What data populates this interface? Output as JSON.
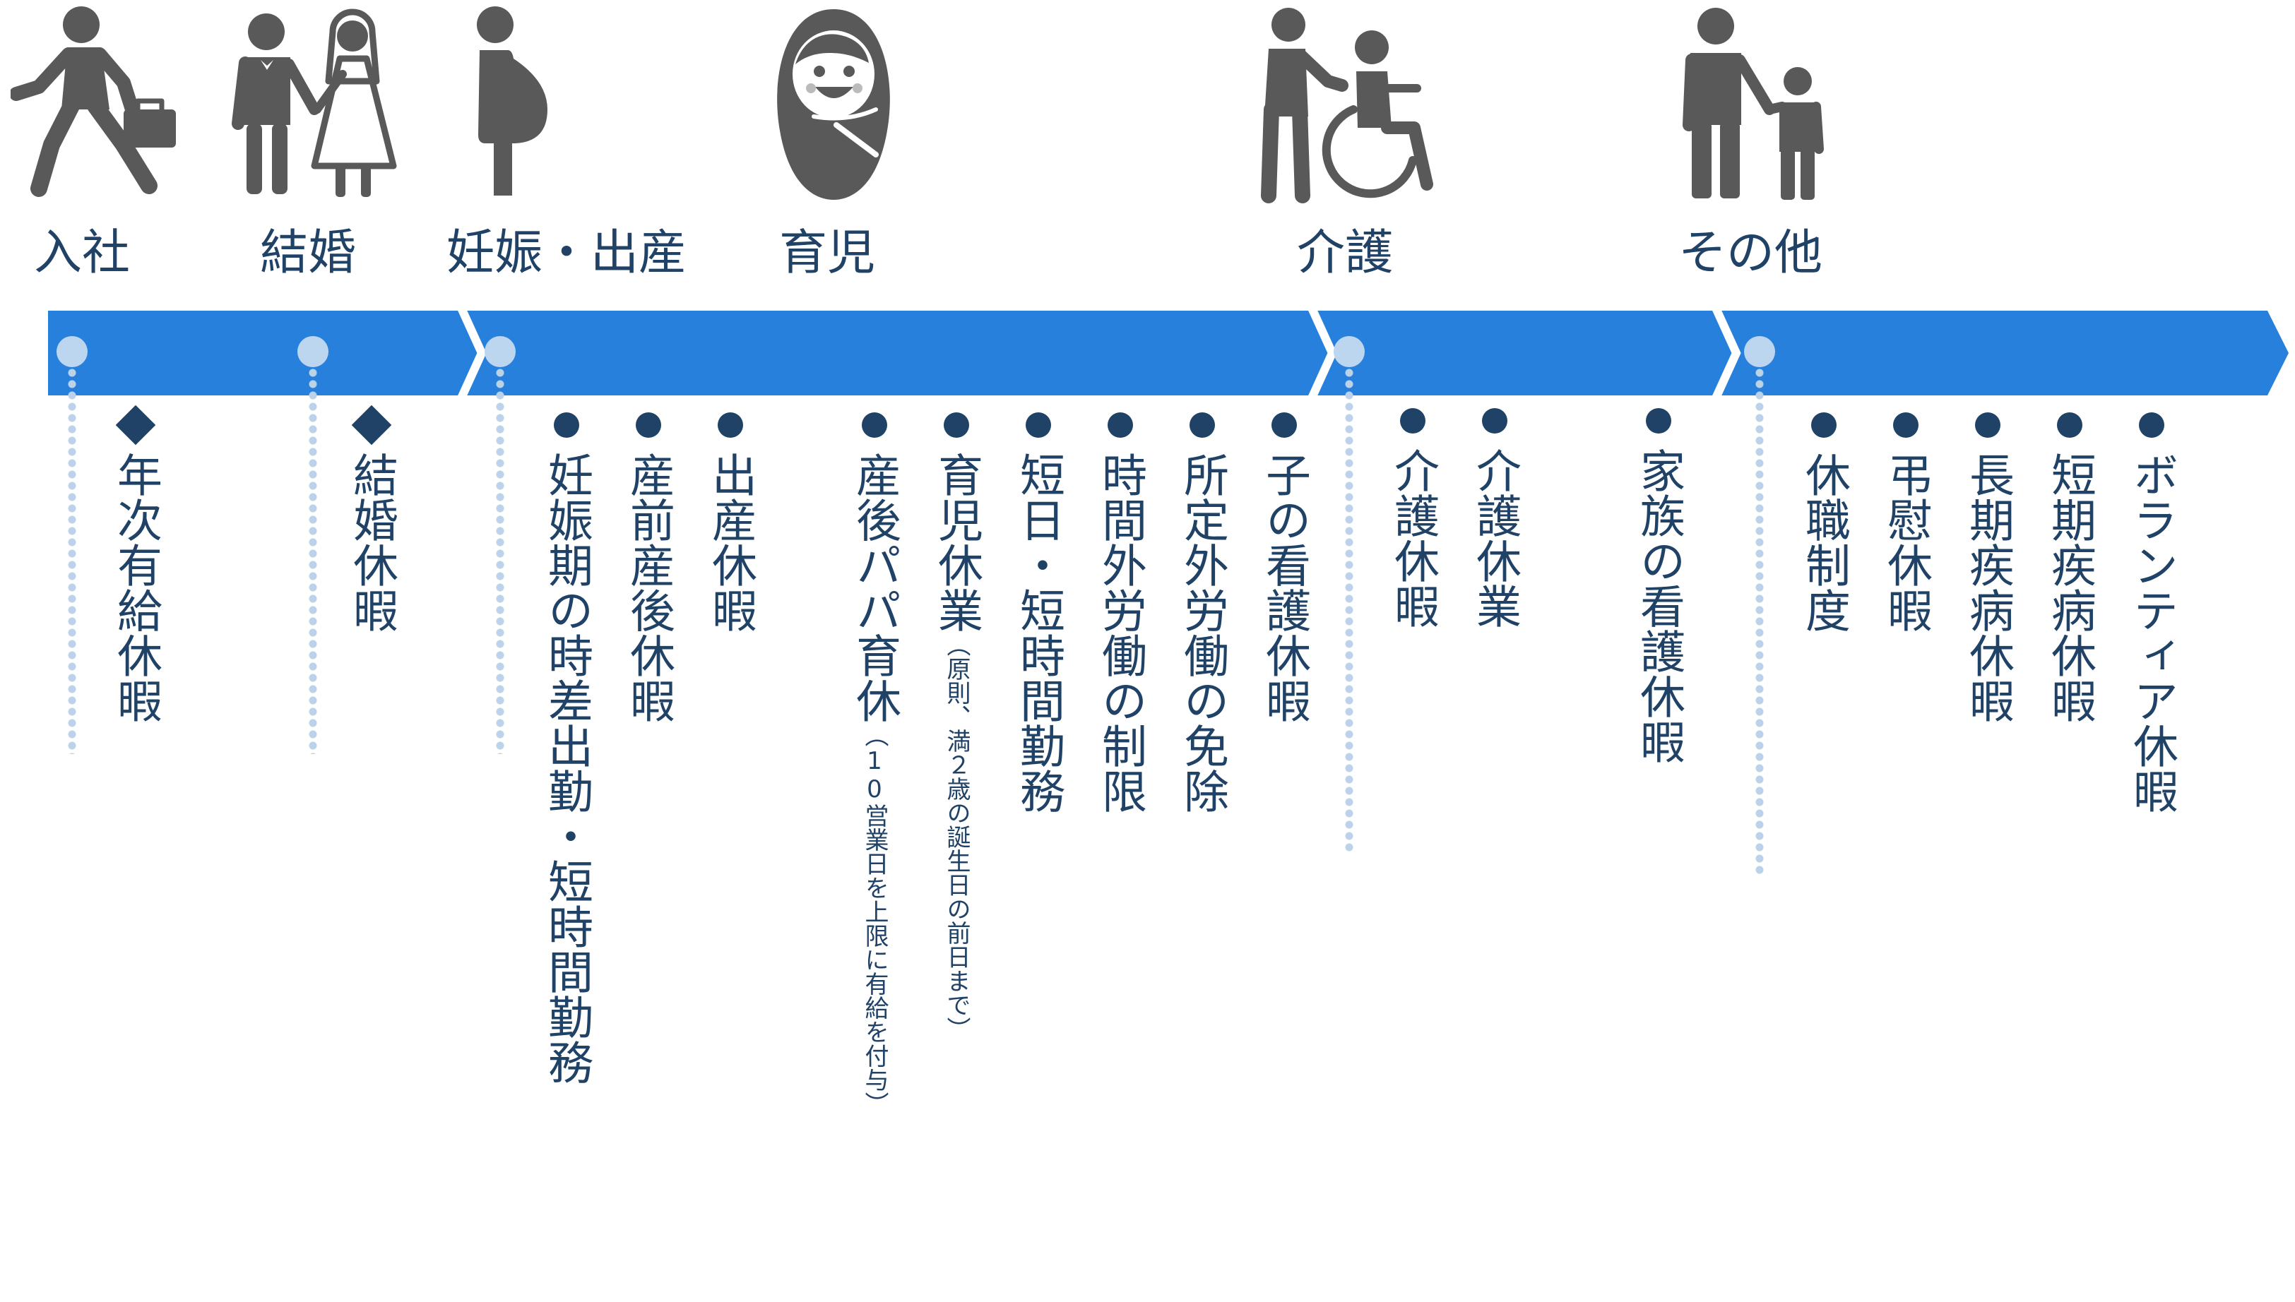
{
  "colors": {
    "arrow": "#2781dc",
    "icon": "#595959",
    "text": "#1f4266",
    "pin": "#bcd6f0",
    "dots": "#bcd2e8"
  },
  "categories": [
    {
      "label": "入社",
      "icon": "walking-businessman-icon"
    },
    {
      "label": "結婚",
      "icon": "wedding-couple-icon"
    },
    {
      "label": "妊娠・出産",
      "icon": "pregnant-woman-icon"
    },
    {
      "label": "育児",
      "icon": "swaddled-baby-icon"
    },
    {
      "label": "介護",
      "icon": "caregiver-wheelchair-icon"
    },
    {
      "label": "その他",
      "icon": "adult-child-icon"
    }
  ],
  "items": {
    "nyusha": [
      {
        "text": "年次有給休暇"
      }
    ],
    "kekkon": [
      {
        "text": "結婚休暇"
      }
    ],
    "ninshin": [
      {
        "text": "妊娠期の時差出勤・短時間勤務"
      },
      {
        "text": "産前産後休暇"
      },
      {
        "text": "出産休暇"
      }
    ],
    "ikuji": [
      {
        "text": "産後パパ育休",
        "note": "（10営業日を上限に有給を付与）"
      },
      {
        "text": "育児休業",
        "note": "（原則、満２歳の誕生日の前日まで）"
      },
      {
        "text": "短日・短時間勤務"
      },
      {
        "text": "時間外労働の制限"
      },
      {
        "text": "所定外労働の免除"
      },
      {
        "text": "子の看護休暇"
      }
    ],
    "kaigo": [
      {
        "text": "介護休暇"
      },
      {
        "text": "介護休業"
      },
      {
        "text": "家族の看護休暇"
      }
    ],
    "sonota": [
      {
        "text": "休職制度"
      },
      {
        "text": "弔慰休暇"
      },
      {
        "text": "長期疾病休暇"
      },
      {
        "text": "短期疾病休暇"
      },
      {
        "text": "ボランティア休暇"
      }
    ]
  }
}
